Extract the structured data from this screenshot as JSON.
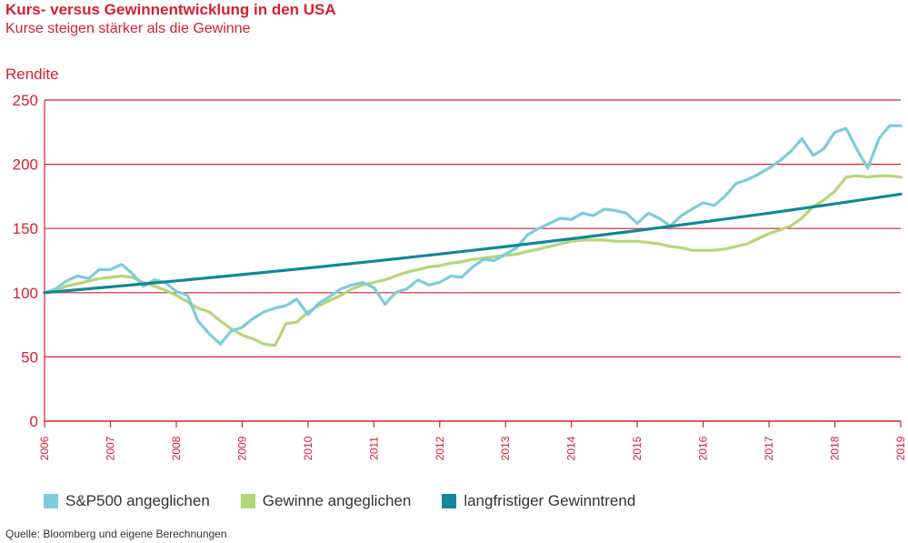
{
  "title": "Kurs- versus Gewinnentwicklung in den USA",
  "subtitle": "Kurse steigen stärker als die Gewinne",
  "source": "Quelle: Bloomberg und eigene Berechnungen",
  "colors": {
    "text": "#d7202f",
    "grid": "#d7202f",
    "sp500": "#7fcbdb",
    "gewinne": "#b4d67a",
    "trend": "#12879a"
  },
  "chart_data": {
    "type": "line",
    "ylabel": "Rendite",
    "xlabel": "",
    "ylim": [
      0,
      250
    ],
    "xlim": [
      2006,
      2019
    ],
    "yticks": [
      "0",
      "50",
      "100",
      "150",
      "200",
      "250"
    ],
    "xticks": [
      "2006",
      "2007",
      "2008",
      "2009",
      "2010",
      "2011",
      "2012",
      "2013",
      "2014",
      "2015",
      "2016",
      "2017",
      "2018",
      "2019"
    ],
    "grid": true,
    "legend_position": "bottom-left",
    "series": [
      {
        "name": "S&P500 angeglichen",
        "color": "#7fcbdb",
        "x": [
          2006.0,
          2006.17,
          2006.33,
          2006.5,
          2006.67,
          2006.83,
          2007.0,
          2007.17,
          2007.33,
          2007.5,
          2007.67,
          2007.83,
          2008.0,
          2008.17,
          2008.33,
          2008.5,
          2008.67,
          2008.83,
          2009.0,
          2009.17,
          2009.33,
          2009.5,
          2009.67,
          2009.83,
          2010.0,
          2010.17,
          2010.33,
          2010.5,
          2010.67,
          2010.83,
          2011.0,
          2011.17,
          2011.33,
          2011.5,
          2011.67,
          2011.83,
          2012.0,
          2012.17,
          2012.33,
          2012.5,
          2012.67,
          2012.83,
          2013.0,
          2013.17,
          2013.33,
          2013.5,
          2013.67,
          2013.83,
          2014.0,
          2014.17,
          2014.33,
          2014.5,
          2014.67,
          2014.83,
          2015.0,
          2015.17,
          2015.33,
          2015.5,
          2015.67,
          2015.83,
          2016.0,
          2016.17,
          2016.33,
          2016.5,
          2016.67,
          2016.83,
          2017.0,
          2017.17,
          2017.33,
          2017.5,
          2017.67,
          2017.83,
          2018.0,
          2018.17,
          2018.33,
          2018.5,
          2018.67,
          2018.83,
          2019.0
        ],
        "y": [
          100,
          103,
          109,
          113,
          111,
          118,
          118,
          122,
          115,
          105,
          110,
          108,
          101,
          98,
          78,
          68,
          60,
          70,
          73,
          80,
          85,
          88,
          90,
          95,
          83,
          92,
          97,
          103,
          106,
          108,
          104,
          91,
          100,
          103,
          110,
          106,
          108,
          113,
          112,
          120,
          126,
          125,
          130,
          135,
          145,
          150,
          154,
          158,
          157,
          162,
          160,
          165,
          164,
          162,
          154,
          162,
          158,
          152,
          160,
          165,
          170,
          168,
          175,
          185,
          188,
          192,
          197,
          203,
          210,
          220,
          207,
          212,
          225,
          228,
          212,
          197,
          220,
          230,
          230
        ]
      },
      {
        "name": "Gewinne angeglichen",
        "color": "#b4d67a",
        "x": [
          2006.0,
          2006.17,
          2006.33,
          2006.5,
          2006.67,
          2006.83,
          2007.0,
          2007.17,
          2007.33,
          2007.5,
          2007.67,
          2007.83,
          2008.0,
          2008.17,
          2008.33,
          2008.5,
          2008.67,
          2008.83,
          2009.0,
          2009.17,
          2009.33,
          2009.5,
          2009.67,
          2009.83,
          2010.0,
          2010.17,
          2010.33,
          2010.5,
          2010.67,
          2010.83,
          2011.0,
          2011.17,
          2011.33,
          2011.5,
          2011.67,
          2011.83,
          2012.0,
          2012.17,
          2012.33,
          2012.5,
          2012.67,
          2012.83,
          2013.0,
          2013.17,
          2013.33,
          2013.5,
          2013.67,
          2013.83,
          2014.0,
          2014.17,
          2014.33,
          2014.5,
          2014.67,
          2014.83,
          2015.0,
          2015.17,
          2015.33,
          2015.5,
          2015.67,
          2015.83,
          2016.0,
          2016.17,
          2016.33,
          2016.5,
          2016.67,
          2016.83,
          2017.0,
          2017.17,
          2017.33,
          2017.5,
          2017.67,
          2017.83,
          2018.0,
          2018.17,
          2018.33,
          2018.5,
          2018.67,
          2018.83,
          2019.0
        ],
        "y": [
          100,
          102,
          105,
          107,
          109,
          111,
          112,
          113,
          112,
          108,
          105,
          102,
          98,
          93,
          88,
          85,
          78,
          72,
          67,
          64,
          60,
          59,
          76,
          77,
          85,
          90,
          94,
          98,
          103,
          106,
          108,
          110,
          113,
          116,
          118,
          120,
          121,
          123,
          124,
          126,
          127,
          128,
          129,
          130,
          132,
          134,
          136,
          138,
          140,
          141,
          141,
          141,
          140,
          140,
          140,
          139,
          138,
          136,
          135,
          133,
          133,
          133,
          134,
          136,
          138,
          142,
          146,
          149,
          152,
          158,
          167,
          172,
          179,
          190,
          191,
          190,
          191,
          191,
          190
        ]
      },
      {
        "name": "langfristiger Gewinntrend",
        "color": "#12879a",
        "x": [
          2006,
          2007,
          2008,
          2009,
          2010,
          2011,
          2012,
          2013,
          2014,
          2015,
          2016,
          2017,
          2018,
          2019
        ],
        "y": [
          100,
          104.5,
          109.2,
          114.1,
          119.2,
          124.5,
          130.1,
          135.9,
          142.0,
          148.4,
          155.0,
          162.0,
          169.2,
          176.8
        ]
      }
    ]
  }
}
